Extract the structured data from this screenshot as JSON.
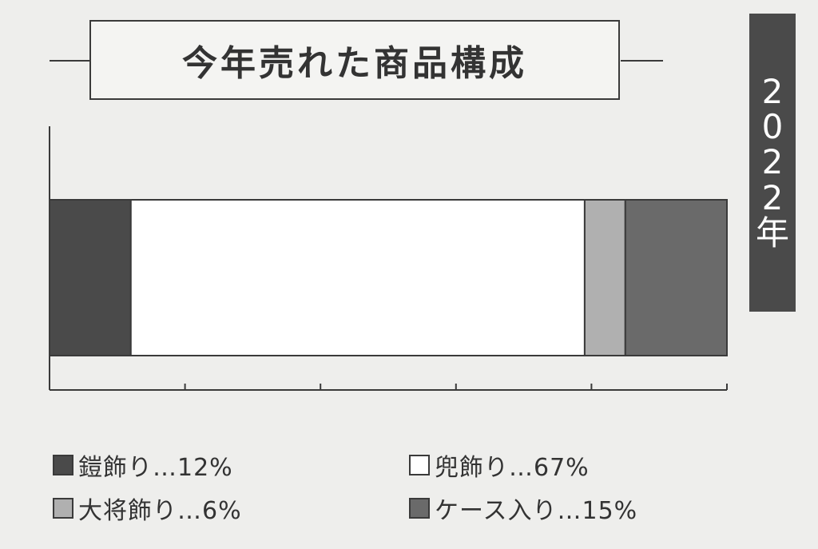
{
  "title": "今年売れた商品構成",
  "year_label": "2022年",
  "chart_data": {
    "type": "bar",
    "stacked": true,
    "orientation": "horizontal",
    "title": "今年売れた商品構成",
    "xlim": [
      0,
      100
    ],
    "series": [
      {
        "name": "鎧飾り",
        "value": 12,
        "color": "#4a4a4a"
      },
      {
        "name": "兜飾り",
        "value": 67,
        "color": "#ffffff"
      },
      {
        "name": "大将飾り",
        "value": 6,
        "color": "#b0b0b0"
      },
      {
        "name": "ケース入り",
        "value": 15,
        "color": "#6a6a6a"
      }
    ]
  },
  "legend": [
    {
      "label": "鎧飾り…12%",
      "color": "#4a4a4a"
    },
    {
      "label": "兜飾り…67%",
      "color": "#ffffff"
    },
    {
      "label": "大将飾り…6%",
      "color": "#b0b0b0"
    },
    {
      "label": "ケース入り…15%",
      "color": "#6a6a6a"
    }
  ]
}
